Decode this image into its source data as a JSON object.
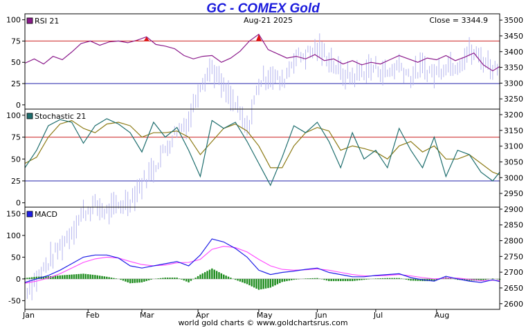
{
  "title": "GC - COMEX Gold",
  "footer": "world gold charts © www.goldchartsrus.com",
  "header": {
    "date": "Aug-21  2025",
    "close": "Close = 3344.9"
  },
  "colors": {
    "background": "#ffffff",
    "price_bars": "#b4b4ee",
    "rsi": "#8b1a8b",
    "stoch_k": "#1e6e6e",
    "stoch_d": "#8c7a14",
    "macd": "#1e1ee6",
    "signal": "#ff44ff",
    "histogram": "#1e8c1e",
    "overbought": "#cc2020",
    "oversold": "#2020aa",
    "title": "#1a1adc"
  },
  "chart_data": {
    "type": "line",
    "price_axis": {
      "ticks": [
        2600,
        2650,
        2700,
        2750,
        2800,
        2850,
        2900,
        2950,
        3000,
        3050,
        3100,
        3150,
        3200,
        3250,
        3300,
        3350,
        3400,
        3450,
        3500
      ],
      "range": [
        2582,
        3520
      ]
    },
    "x_labels": [
      "Jan",
      "Feb",
      "Mar",
      "Apr",
      "May",
      "Jun",
      "Jul",
      "Aug"
    ],
    "panels": [
      {
        "label": "RSI 21",
        "ticks": [
          0,
          25,
          50,
          75,
          100
        ],
        "range": [
          -5,
          107
        ],
        "levels": [
          75,
          25
        ],
        "rsi_x": [
          0,
          4,
          8,
          12,
          16,
          20,
          24,
          28,
          32,
          36,
          40,
          44,
          48,
          52,
          56,
          60,
          64,
          68,
          72,
          76,
          80,
          84,
          88,
          92,
          96,
          100,
          104,
          108,
          112,
          116,
          120,
          124,
          128,
          132,
          136,
          140,
          144,
          148,
          152,
          156,
          160,
          164,
          168,
          172,
          176,
          180,
          184,
          188,
          192,
          196,
          200,
          203
        ],
        "rsi": [
          49,
          54,
          48,
          57,
          53,
          62,
          72,
          75,
          70,
          74,
          75,
          73,
          76,
          80,
          71,
          69,
          66,
          58,
          54,
          57,
          58,
          50,
          55,
          63,
          75,
          83,
          65,
          60,
          55,
          57,
          54,
          59,
          52,
          54,
          48,
          52,
          47,
          50,
          48,
          53,
          58,
          54,
          50,
          55,
          53,
          58,
          52,
          56,
          61,
          47,
          40,
          45
        ]
      },
      {
        "label": "Stochastic 21",
        "ticks": [
          0,
          25,
          50,
          75,
          100
        ],
        "range": [
          -5,
          107
        ],
        "levels": [
          75,
          25
        ],
        "stoch_x": [
          0,
          5,
          10,
          15,
          20,
          25,
          30,
          35,
          40,
          45,
          50,
          55,
          60,
          65,
          70,
          75,
          80,
          85,
          90,
          95,
          100,
          105,
          110,
          115,
          120,
          125,
          130,
          135,
          140,
          145,
          150,
          155,
          160,
          165,
          170,
          175,
          180,
          185,
          190,
          195,
          200,
          203
        ],
        "stoch_k": [
          40,
          60,
          88,
          95,
          92,
          68,
          88,
          96,
          90,
          80,
          58,
          92,
          75,
          86,
          60,
          30,
          94,
          85,
          92,
          70,
          45,
          20,
          52,
          88,
          80,
          92,
          70,
          40,
          80,
          50,
          60,
          40,
          85,
          60,
          40,
          75,
          30,
          60,
          55,
          35,
          25,
          35
        ],
        "stoch_d": [
          45,
          52,
          75,
          90,
          94,
          85,
          80,
          90,
          92,
          88,
          75,
          80,
          80,
          82,
          75,
          55,
          70,
          85,
          90,
          82,
          65,
          40,
          40,
          65,
          80,
          86,
          82,
          60,
          65,
          62,
          58,
          50,
          65,
          70,
          58,
          65,
          50,
          50,
          55,
          45,
          35,
          32
        ]
      },
      {
        "label": "MACD",
        "ticks": [
          -50,
          0,
          50,
          100,
          150
        ],
        "range": [
          -70,
          165
        ],
        "macd_x": [
          0,
          5,
          10,
          15,
          20,
          25,
          30,
          35,
          40,
          45,
          50,
          55,
          60,
          65,
          70,
          75,
          80,
          85,
          90,
          95,
          100,
          105,
          110,
          115,
          120,
          125,
          130,
          135,
          140,
          145,
          150,
          155,
          160,
          165,
          170,
          175,
          180,
          185,
          190,
          195,
          200,
          203
        ],
        "macd": [
          -8,
          0,
          8,
          20,
          35,
          50,
          55,
          55,
          48,
          30,
          25,
          30,
          35,
          40,
          30,
          55,
          92,
          85,
          70,
          50,
          20,
          10,
          15,
          18,
          22,
          25,
          15,
          10,
          5,
          5,
          8,
          10,
          12,
          3,
          -2,
          -5,
          6,
          0,
          -5,
          -8,
          -2,
          -6
        ],
        "signal_x": [
          0,
          5,
          10,
          15,
          20,
          25,
          30,
          35,
          40,
          45,
          50,
          55,
          60,
          65,
          70,
          75,
          80,
          85,
          90,
          95,
          100,
          105,
          110,
          115,
          120,
          125,
          130,
          135,
          140,
          145,
          150,
          155,
          160,
          165,
          170,
          175,
          180,
          185,
          190,
          195,
          200,
          203
        ],
        "signal": [
          -10,
          -5,
          2,
          12,
          25,
          38,
          46,
          50,
          48,
          40,
          33,
          30,
          32,
          37,
          38,
          45,
          68,
          75,
          72,
          62,
          45,
          30,
          22,
          20,
          21,
          23,
          20,
          15,
          10,
          7,
          7,
          8,
          10,
          7,
          3,
          0,
          2,
          2,
          -1,
          -4,
          -3,
          -4
        ]
      }
    ],
    "price_bars_note": "daily high-low bars on the price axis (right), Jan through Aug-21 2025",
    "price_x": [
      0,
      5,
      10,
      15,
      20,
      25,
      30,
      35,
      40,
      45,
      50,
      55,
      60,
      65,
      70,
      75,
      80,
      85,
      90,
      95,
      100,
      105,
      110,
      115,
      120,
      125,
      130,
      135,
      140,
      145,
      150,
      155,
      160,
      165,
      170,
      175,
      180,
      185,
      190,
      195,
      200,
      203
    ],
    "price": [
      2640,
      2680,
      2730,
      2780,
      2830,
      2890,
      2910,
      2890,
      2910,
      2930,
      2980,
      3030,
      3090,
      3150,
      3180,
      3300,
      3350,
      3280,
      3230,
      3150,
      3300,
      3330,
      3300,
      3380,
      3390,
      3410,
      3380,
      3330,
      3320,
      3340,
      3350,
      3330,
      3360,
      3320,
      3350,
      3330,
      3360,
      3360,
      3400,
      3380,
      3350,
      3345
    ]
  }
}
